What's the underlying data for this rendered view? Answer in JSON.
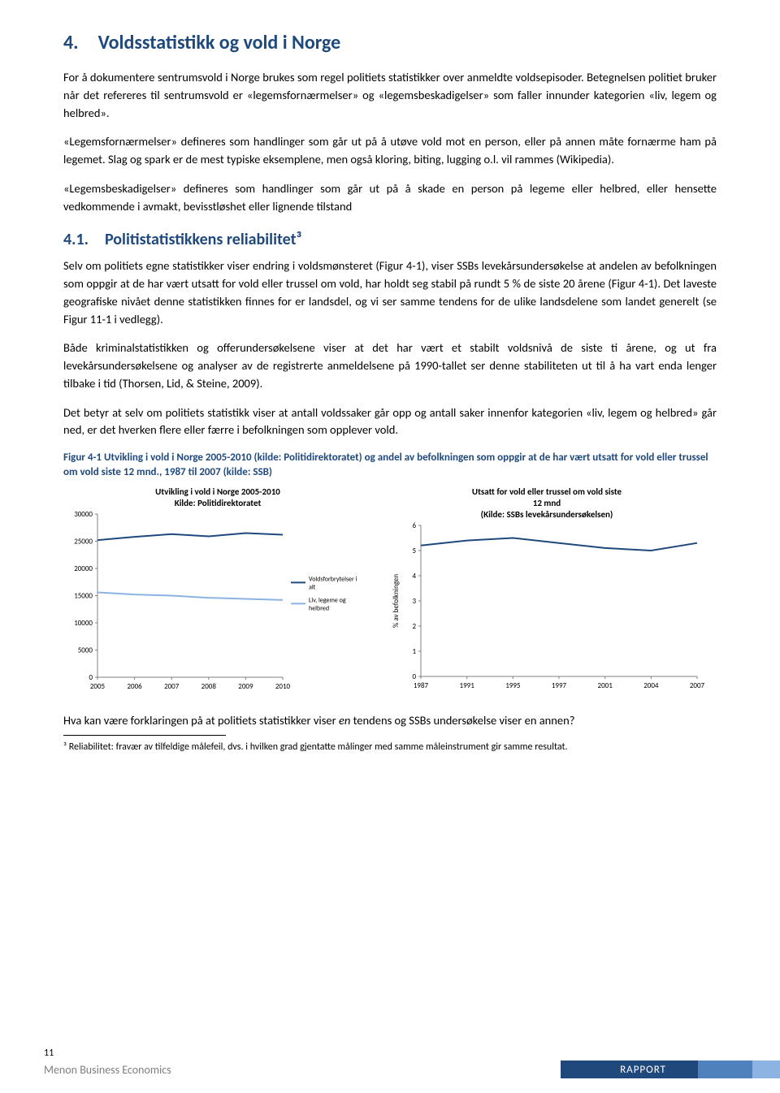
{
  "heading1": "4. Voldsstatistikk og vold i Norge",
  "p1": "For å dokumentere sentrumsvold i Norge brukes som regel politiets statistikker over anmeldte voldsepisoder. Betegnelsen politiet bruker når det refereres til sentrumsvold er «legemsfornærmelser» og «legemsbeskadigelser» som faller innunder kategorien «liv, legem og helbred».",
  "p2": "«Legemsfornærmelser» defineres som handlinger som går ut på å utøve vold mot en person, eller på annen måte fornærme ham på legemet. Slag og spark er de mest typiske eksemplene, men også kloring, biting, lugging o.l. vil rammes (Wikipedia).",
  "p3": "«Legemsbeskadigelser» defineres som handlinger som går ut på å skade en person på legeme eller helbred, eller hensette vedkommende i avmakt, bevisstløshet eller lignende tilstand",
  "heading2": "4.1. Politistatistikkens reliabilitet³",
  "p4": "Selv om politiets egne statistikker viser endring i voldsmønsteret (Figur 4-1), viser SSBs levekårsundersøkelse at andelen av befolkningen som oppgir at de har vært utsatt for vold eller trussel om vold, har holdt seg stabil på rundt 5 % de siste 20 årene (Figur 4-1). Det laveste geografiske nivået denne statistikken finnes for er landsdel, og vi ser samme tendens for de ulike landsdelene som landet generelt (se Figur 11-1 i vedlegg).",
  "p5": "Både kriminalstatistikken og offerundersøkelsene viser at det har vært et stabilt voldsnivå de siste ti årene, og ut fra levekårsundersøkelsene og analyser av de registrerte anmeldelsene på 1990-tallet ser denne stabiliteten ut til å ha vart enda lenger tilbake i tid (Thorsen, Lid, & Steine, 2009).",
  "p6": "Det betyr at selv om politiets statistikk viser at antall voldssaker går opp og antall saker innenfor kategorien «liv, legem og helbred» går ned, er det hverken flere eller færre i befolkningen som opplever vold.",
  "figcap": "Figur 4-1 Utvikling i vold i Norge 2005-2010 (kilde: Politidirektoratet) og andel av befolkningen som oppgir at de har vært utsatt for vold eller trussel om vold siste 12 mnd., 1987 til 2007 (kilde: SSB)",
  "chart1": {
    "title1": "Utvikling i vold i Norge 2005-2010",
    "title2": "Kilde:  Politidirektoratet",
    "line_color": "#1f497d",
    "alt_color": "#8db3e2",
    "axis_color": "#808080",
    "tick_fontsize": 9,
    "legend_fontsize": 8,
    "legend1": "Voldsforbrytelser i alt",
    "legend2": "Liv, legeme og helbred",
    "y_ticks": [
      0,
      5000,
      10000,
      15000,
      20000,
      25000,
      30000
    ],
    "x_labels": [
      "2005",
      "2006",
      "2007",
      "2008",
      "2009",
      "2010"
    ],
    "series1": [
      25200,
      25800,
      26300,
      25900,
      26500,
      26200
    ],
    "series2": [
      15600,
      15200,
      15000,
      14600,
      14400,
      14200
    ]
  },
  "chart2": {
    "title1": "Utsatt for vold eller trussel om vold siste",
    "title2": "12 mnd",
    "title3": "(Kilde: SSBs levekårsundersøkelsen)",
    "line_color": "#1f497d",
    "axis_color": "#808080",
    "tick_fontsize": 9,
    "ylabel": "% av befolkningen",
    "y_ticks": [
      0,
      1,
      2,
      3,
      4,
      5,
      6
    ],
    "x_labels": [
      "1987",
      "1991",
      "1995",
      "1997",
      "2001",
      "2004",
      "2007"
    ],
    "series": [
      5.2,
      5.4,
      5.5,
      5.3,
      5.1,
      5.0,
      5.3
    ]
  },
  "after_charts": "Hva kan være forklaringen på at politiets statistikker viser en tendens og SSBs undersøkelse viser en annen?",
  "after_charts_emph": [
    "en"
  ],
  "footnote": "³ Reliabilitet: fravær av tilfeldige målefeil, dvs. i hvilken grad gjentatte målinger med samme måleinstrument gir samme resultat.",
  "footer": {
    "page": "11",
    "org": "Menon Business Economics",
    "tag": "RAPPORT"
  },
  "colors": {
    "heading": "#1f497d",
    "body": "#000000",
    "footer_gray": "#7f7f7f",
    "stripe": [
      "#1f497d",
      "#4f81bd",
      "#8db3e2"
    ]
  }
}
